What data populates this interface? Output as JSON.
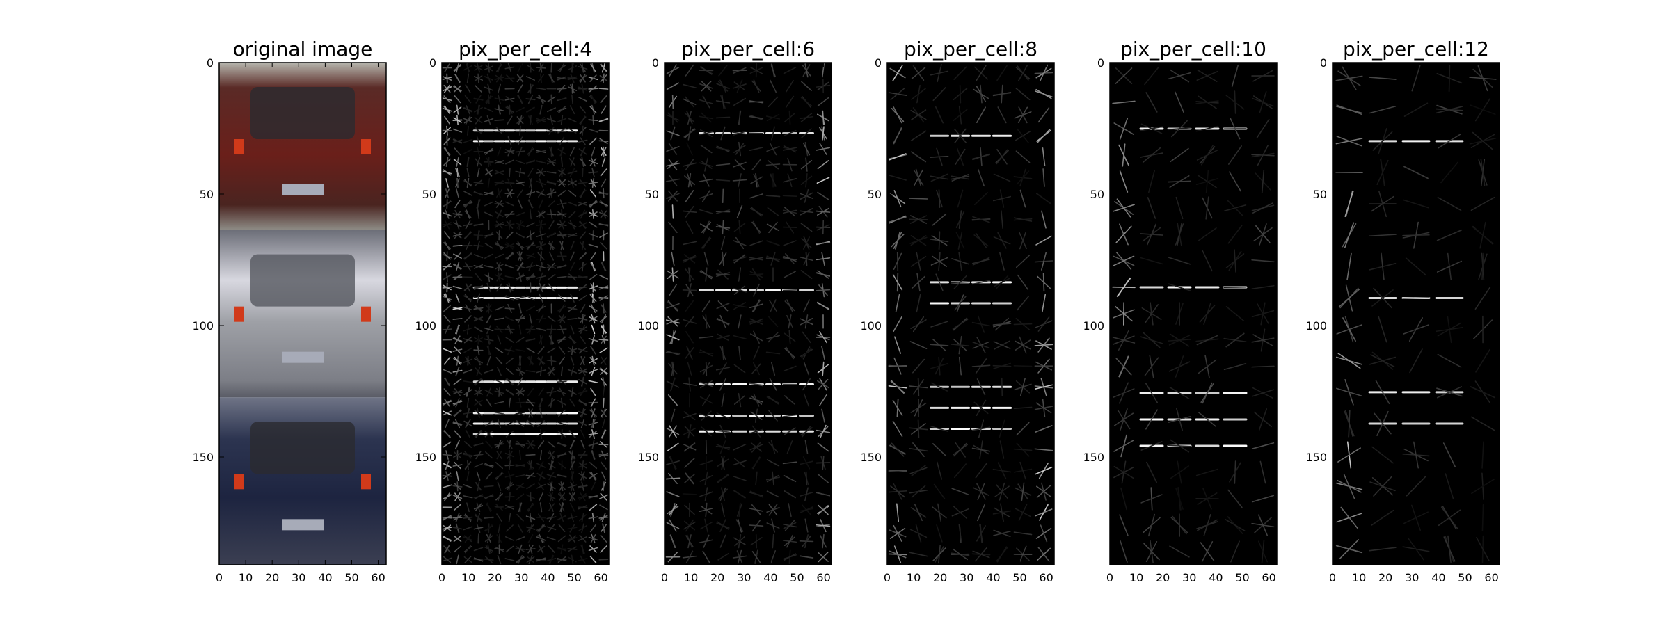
{
  "chart_data": [
    {
      "type": "image",
      "title": "original image",
      "content": "photo: three vehicle rear views stacked vertically (red SUV, silver hatchback, dark blue car)",
      "xlim": [
        0,
        63
      ],
      "ylim": [
        191,
        0
      ],
      "xticks": [
        0,
        10,
        20,
        30,
        40,
        50,
        60
      ],
      "yticks": [
        0,
        50,
        100,
        150
      ]
    },
    {
      "type": "image",
      "title": "pix_per_cell:4",
      "content": "HOG visualization, grayscale gradient-orientation glyphs on black",
      "xlim": [
        0,
        63
      ],
      "ylim": [
        191,
        0
      ],
      "xticks": [
        0,
        10,
        20,
        30,
        40,
        50,
        60
      ],
      "yticks": [
        0,
        50,
        100,
        150
      ]
    },
    {
      "type": "image",
      "title": "pix_per_cell:6",
      "content": "HOG visualization, grayscale gradient-orientation glyphs on black",
      "xlim": [
        0,
        63
      ],
      "ylim": [
        191,
        0
      ],
      "xticks": [
        0,
        10,
        20,
        30,
        40,
        50,
        60
      ],
      "yticks": [
        0,
        50,
        100,
        150
      ]
    },
    {
      "type": "image",
      "title": "pix_per_cell:8",
      "content": "HOG visualization, grayscale gradient-orientation glyphs on black",
      "xlim": [
        0,
        63
      ],
      "ylim": [
        191,
        0
      ],
      "xticks": [
        0,
        10,
        20,
        30,
        40,
        50,
        60
      ],
      "yticks": [
        0,
        50,
        100,
        150
      ]
    },
    {
      "type": "image",
      "title": "pix_per_cell:10",
      "content": "HOG visualization, grayscale gradient-orientation glyphs on black",
      "xlim": [
        0,
        63
      ],
      "ylim": [
        191,
        0
      ],
      "xticks": [
        0,
        10,
        20,
        30,
        40,
        50,
        60
      ],
      "yticks": [
        0,
        50,
        100,
        150
      ]
    },
    {
      "type": "image",
      "title": "pix_per_cell:12",
      "content": "HOG visualization, grayscale gradient-orientation glyphs on black",
      "xlim": [
        0,
        63
      ],
      "ylim": [
        191,
        0
      ],
      "xticks": [
        0,
        10,
        20,
        30,
        40,
        50,
        60
      ],
      "yticks": [
        0,
        50,
        100,
        150
      ]
    }
  ]
}
